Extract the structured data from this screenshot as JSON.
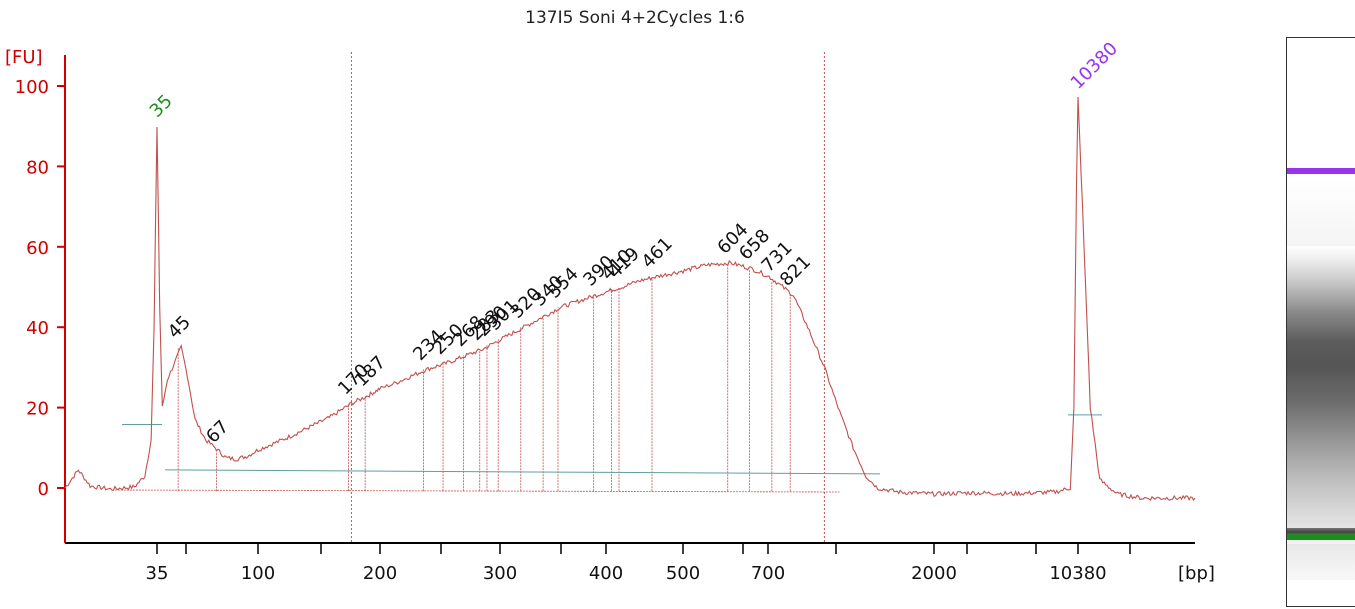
{
  "chart_data": {
    "type": "line",
    "title": "137I5 Soni 4+2Cycles 1:6",
    "ylabel": "[FU]",
    "xlabel": "[bp]",
    "ylim": [
      -13,
      108
    ],
    "y_ticks": [
      0,
      20,
      40,
      60,
      80,
      100
    ],
    "x_tick_labels": [
      "35",
      "100",
      "200",
      "300",
      "400",
      "500",
      "700",
      "2000",
      "10380"
    ],
    "colors": {
      "trace": "#c0504d",
      "axis": "#d00000",
      "baseline": "#5f9ea0",
      "lower_marker": "#1e8c1e",
      "upper_marker": "#9933ee",
      "peak_label": "#111111"
    },
    "markers": [
      {
        "label": "35",
        "bp": 35,
        "peak_height": 90,
        "color": "#1e8c1e"
      },
      {
        "label": "10380",
        "bp": 10380,
        "peak_height": 97,
        "color": "#9933ee"
      }
    ],
    "peak_labels": [
      "45",
      "67",
      "170",
      "187",
      "234",
      "250",
      "268",
      "283",
      "290",
      "301",
      "320",
      "340",
      "354",
      "390",
      "410",
      "419",
      "461",
      "604",
      "658",
      "731",
      "821"
    ],
    "region_boundaries": [
      170,
      1000
    ],
    "trace_points": [
      [
        14,
        0
      ],
      [
        16,
        4.5
      ],
      [
        18,
        0.5
      ],
      [
        22,
        -0.3
      ],
      [
        28,
        0.3
      ],
      [
        31,
        3
      ],
      [
        33,
        12
      ],
      [
        34,
        40
      ],
      [
        35,
        90
      ],
      [
        36,
        45
      ],
      [
        37,
        20
      ],
      [
        39,
        27
      ],
      [
        45,
        35
      ],
      [
        48,
        28
      ],
      [
        52,
        17
      ],
      [
        58,
        12
      ],
      [
        64,
        10
      ],
      [
        67,
        9
      ],
      [
        72,
        7.5
      ],
      [
        80,
        7.2
      ],
      [
        90,
        8
      ],
      [
        100,
        9.5
      ],
      [
        115,
        12
      ],
      [
        130,
        14.5
      ],
      [
        150,
        17.5
      ],
      [
        170,
        21
      ],
      [
        187,
        23
      ],
      [
        210,
        26
      ],
      [
        234,
        29.5
      ],
      [
        250,
        31
      ],
      [
        268,
        33
      ],
      [
        283,
        34.5
      ],
      [
        290,
        35.5
      ],
      [
        301,
        37
      ],
      [
        320,
        40
      ],
      [
        340,
        43
      ],
      [
        354,
        45
      ],
      [
        390,
        48
      ],
      [
        410,
        49.5
      ],
      [
        419,
        50
      ],
      [
        440,
        51.5
      ],
      [
        461,
        52.5
      ],
      [
        500,
        54
      ],
      [
        550,
        55.5
      ],
      [
        604,
        56
      ],
      [
        658,
        54.5
      ],
      [
        731,
        51.5
      ],
      [
        821,
        48
      ],
      [
        900,
        40
      ],
      [
        1000,
        30
      ],
      [
        1100,
        19
      ],
      [
        1200,
        10
      ],
      [
        1300,
        3
      ],
      [
        1400,
        0
      ],
      [
        1600,
        -1
      ],
      [
        2000,
        -1.5
      ],
      [
        3000,
        -1.2
      ],
      [
        5000,
        -1.4
      ],
      [
        8000,
        -1
      ],
      [
        9500,
        0
      ],
      [
        9900,
        20
      ],
      [
        10200,
        75
      ],
      [
        10380,
        97
      ],
      [
        10600,
        70
      ],
      [
        11000,
        20
      ],
      [
        11500,
        2
      ],
      [
        12500,
        -1.5
      ],
      [
        14000,
        -2.5
      ],
      [
        18000,
        -2.5
      ]
    ]
  }
}
